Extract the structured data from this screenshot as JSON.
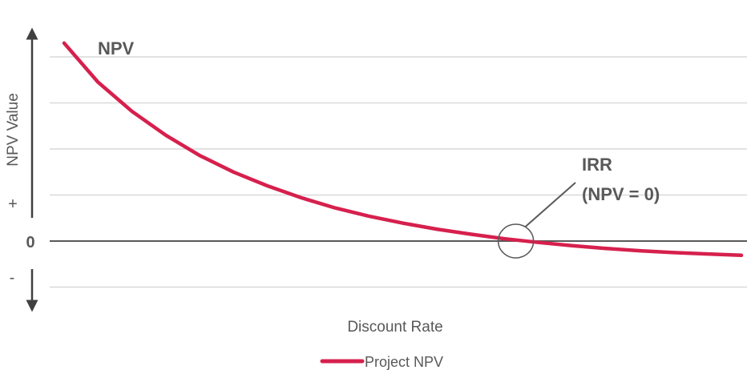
{
  "chart_data": {
    "type": "line",
    "xlabel": "Discount Rate",
    "ylabel": "NPV Value",
    "ylim": [
      -1,
      4.2
    ],
    "xlim": [
      0,
      1
    ],
    "grid": true,
    "legend_position": "bottom",
    "series": [
      {
        "name": "Project NPV",
        "color": "#d6204d",
        "x": [
          0.0,
          0.05,
          0.1,
          0.15,
          0.2,
          0.25,
          0.3,
          0.35,
          0.4,
          0.45,
          0.5,
          0.55,
          0.6,
          0.65,
          0.7,
          0.75,
          0.8,
          0.85,
          0.9,
          0.95,
          1.0
        ],
        "values": [
          4.3,
          3.45,
          2.82,
          2.3,
          1.86,
          1.5,
          1.2,
          0.94,
          0.72,
          0.54,
          0.39,
          0.26,
          0.15,
          0.05,
          -0.03,
          -0.1,
          -0.16,
          -0.21,
          -0.25,
          -0.28,
          -0.31
        ]
      }
    ],
    "zero_label": "0",
    "plus_label": "+",
    "minus_label": "-",
    "annotations": {
      "curve_label": "NPV",
      "irr_line1": "IRR",
      "irr_line2": "(NPV = 0)",
      "irr_x": 0.667
    }
  }
}
